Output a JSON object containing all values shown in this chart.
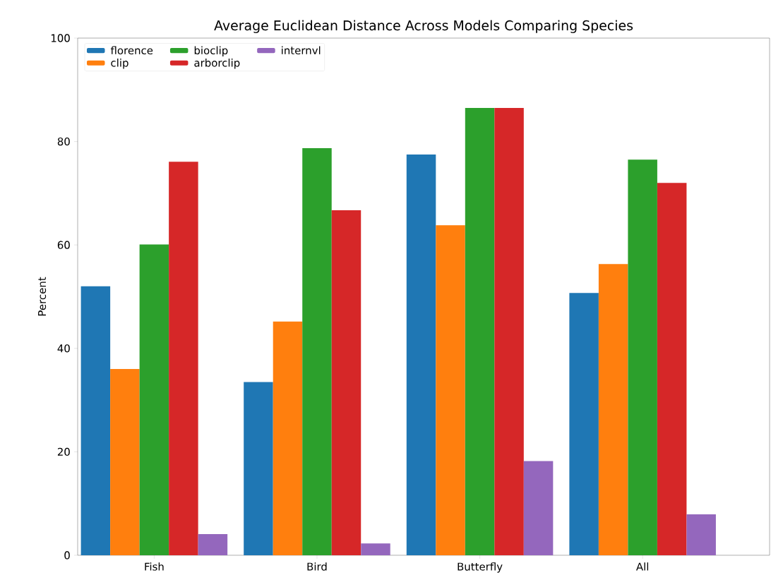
{
  "chart_data": {
    "type": "bar",
    "title": "Average Euclidean Distance Across Models Comparing Species",
    "ylabel": "Percent",
    "categories": [
      "Fish",
      "Bird",
      "Butterfly",
      "All"
    ],
    "series": [
      {
        "name": "florence",
        "color": "#1f77b4",
        "values": [
          52.0,
          33.5,
          77.5,
          50.7
        ]
      },
      {
        "name": "clip",
        "color": "#ff7f0e",
        "values": [
          36.0,
          45.2,
          63.8,
          56.3
        ]
      },
      {
        "name": "bioclip",
        "color": "#2ca02c",
        "values": [
          60.1,
          78.7,
          86.5,
          76.5
        ]
      },
      {
        "name": "arborclip",
        "color": "#d62728",
        "values": [
          76.1,
          66.7,
          86.5,
          72.0
        ]
      },
      {
        "name": "internvl",
        "color": "#9467bd",
        "values": [
          4.1,
          2.3,
          18.2,
          7.9
        ]
      }
    ],
    "ylim": [
      0,
      100
    ],
    "yticks": [
      0,
      20,
      40,
      60,
      80,
      100
    ],
    "grid": false,
    "legend": "top left"
  }
}
